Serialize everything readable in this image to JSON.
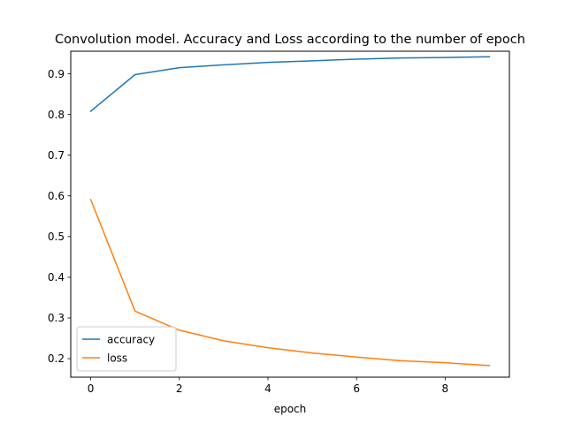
{
  "chart_data": {
    "type": "line",
    "title": "Convolution model. Accuracy and Loss according to the number of epoch",
    "xlabel": "epoch",
    "ylabel": "",
    "x": [
      0,
      1,
      2,
      3,
      4,
      5,
      6,
      7,
      8,
      9
    ],
    "xlim": [
      -0.45,
      9.45
    ],
    "ylim": [
      0.1545,
      0.9555
    ],
    "xticks": [
      0,
      2,
      4,
      6,
      8
    ],
    "yticks": [
      0.2,
      0.3,
      0.4,
      0.5,
      0.6,
      0.7,
      0.8,
      0.9
    ],
    "grid": false,
    "legend_position": "lower-left",
    "series": [
      {
        "name": "accuracy",
        "color": "#1f77b4",
        "values": [
          0.808,
          0.898,
          0.915,
          0.922,
          0.928,
          0.932,
          0.936,
          0.939,
          0.94,
          0.942
        ]
      },
      {
        "name": "loss",
        "color": "#ff7f0e",
        "values": [
          0.591,
          0.317,
          0.27,
          0.244,
          0.227,
          0.214,
          0.204,
          0.195,
          0.19,
          0.183
        ]
      }
    ]
  }
}
